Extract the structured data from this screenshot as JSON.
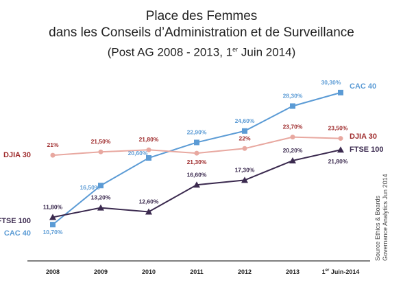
{
  "title": {
    "line1": "Place des Femmes",
    "line2": "dans les Conseils d’Administration et de Surveillance",
    "line3_pre": "(Post AG 2008 - 2013, 1",
    "line3_sup": "er",
    "line3_post": " Juin 2014)"
  },
  "source": [
    "Source Ethics & Boards",
    "Governance Analytics Jun 2014"
  ],
  "x_last_sup": "er",
  "x_last_post": " Juin-2014",
  "chart_data": {
    "type": "line",
    "categories": [
      "2008",
      "2009",
      "2010",
      "2011",
      "2012",
      "2013",
      "1er Juin-2014"
    ],
    "ylim": [
      10,
      31
    ],
    "grid": false,
    "series": [
      {
        "name": "CAC 40",
        "color": "#5b9bd5",
        "marker": "square",
        "values": [
          10.7,
          16.5,
          20.6,
          22.9,
          24.6,
          28.3,
          30.3
        ],
        "labels": [
          "10,70%",
          "16,50%",
          "20,60%",
          "22,90%",
          "24,60%",
          "28,30%",
          "30,30%"
        ]
      },
      {
        "name": "DJIA 30",
        "color": "#e8a8a0",
        "label_color": "#9e2a2b",
        "marker": "circle",
        "values": [
          21.0,
          21.5,
          21.8,
          21.3,
          22.0,
          23.7,
          23.5
        ],
        "labels": [
          "21%",
          "21,50%",
          "21,80%",
          "21,30%",
          "22%",
          "23,70%",
          "23,50%"
        ]
      },
      {
        "name": "FTSE 100",
        "color": "#3b2a4f",
        "marker": "triangle",
        "values": [
          11.8,
          13.2,
          12.6,
          16.6,
          17.3,
          20.2,
          21.8
        ],
        "labels": [
          "11,80%",
          "13,20%",
          "12,60%",
          "16,60%",
          "17,30%",
          "20,20%",
          "21,80%"
        ]
      }
    ]
  }
}
